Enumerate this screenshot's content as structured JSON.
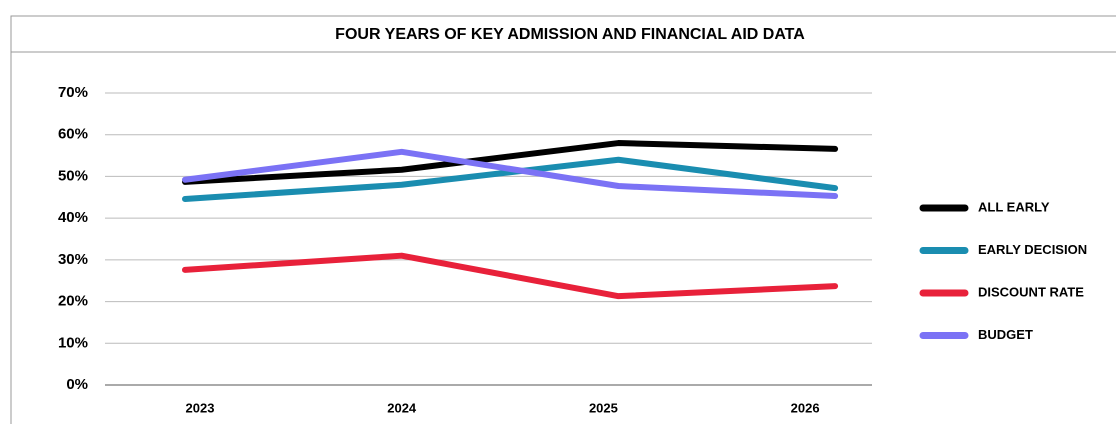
{
  "chart_data": {
    "type": "line",
    "title": "FOUR YEARS OF KEY ADMISSION AND FINANCIAL AID DATA",
    "categories": [
      "2023",
      "2024",
      "2025",
      "2026"
    ],
    "series": [
      {
        "name": "ALL EARLY",
        "color": "#000000",
        "values": [
          48.7,
          51.6,
          58,
          56.6
        ]
      },
      {
        "name": "EARLY DECISION",
        "color": "#1a8db0",
        "values": [
          44.6,
          48,
          54,
          47.2
        ]
      },
      {
        "name": "DISCOUNT RATE",
        "color": "#e8213a",
        "values": [
          27.6,
          31,
          21.3,
          23.7
        ]
      },
      {
        "name": "BUDGET",
        "color": "#7b72f5",
        "values": [
          49.2,
          55.9,
          47.7,
          45.3
        ]
      }
    ],
    "ylim": [
      0,
      70
    ],
    "yticks": [
      {
        "value": 0,
        "label": "0%"
      },
      {
        "value": 10,
        "label": "10%"
      },
      {
        "value": 20,
        "label": "20%"
      },
      {
        "value": 30,
        "label": "30%"
      },
      {
        "value": 40,
        "label": "40%"
      },
      {
        "value": 50,
        "label": "50%"
      },
      {
        "value": 60,
        "label": "60%"
      },
      {
        "value": 70,
        "label": "70%"
      }
    ],
    "grid": true,
    "legend": "right"
  }
}
